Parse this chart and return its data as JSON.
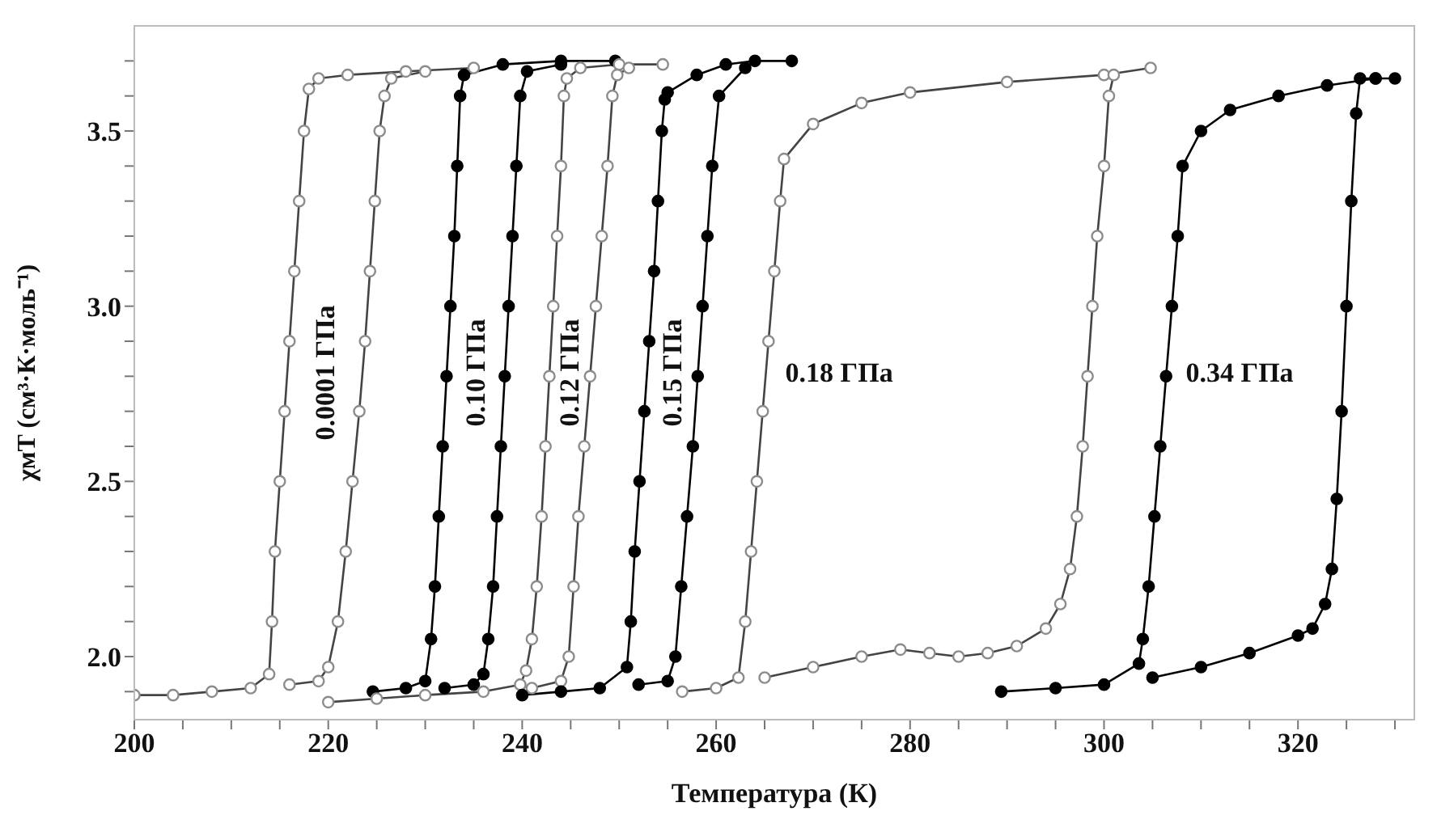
{
  "chart_data": {
    "type": "line",
    "xlabel": "Температура (К)",
    "ylabel": "χмT (см³·К·моль⁻¹)",
    "xlim": [
      200,
      332
    ],
    "ylim": [
      1.82,
      3.8
    ],
    "xticks": [
      200,
      {
        "value": 205,
        "label": null
      },
      {
        "value": 210,
        "label": null
      },
      {
        "value": 215,
        "label": null
      },
      220,
      {
        "value": 225,
        "label": null
      },
      {
        "value": 230,
        "label": null
      },
      {
        "value": 235,
        "label": null
      },
      240,
      {
        "value": 245,
        "label": null
      },
      {
        "value": 250,
        "label": null
      },
      {
        "value": 255,
        "label": null
      },
      260,
      {
        "value": 265,
        "label": null
      },
      {
        "value": 270,
        "label": null
      },
      {
        "value": 275,
        "label": null
      },
      280,
      {
        "value": 285,
        "label": null
      },
      {
        "value": 290,
        "label": null
      },
      {
        "value": 295,
        "label": null
      },
      300,
      {
        "value": 305,
        "label": null
      },
      {
        "value": 310,
        "label": null
      },
      {
        "value": 315,
        "label": null
      },
      320,
      {
        "value": 325,
        "label": null
      },
      {
        "value": 330,
        "label": null
      }
    ],
    "yticks": [
      {
        "value": 1.9,
        "label": null
      },
      {
        "value": 2.0,
        "label": "2.0"
      },
      {
        "value": 2.1,
        "label": null
      },
      {
        "value": 2.2,
        "label": null
      },
      {
        "value": 2.3,
        "label": null
      },
      {
        "value": 2.4,
        "label": null
      },
      2.5,
      {
        "value": 2.6,
        "label": null
      },
      {
        "value": 2.7,
        "label": null
      },
      {
        "value": 2.8,
        "label": null
      },
      {
        "value": 2.9,
        "label": null
      },
      {
        "value": 3.0,
        "label": "3.0"
      },
      {
        "value": 3.1,
        "label": null
      },
      {
        "value": 3.2,
        "label": null
      },
      {
        "value": 3.3,
        "label": null
      },
      {
        "value": 3.4,
        "label": null
      },
      3.5,
      {
        "value": 3.6,
        "label": null
      },
      {
        "value": 3.7,
        "label": null
      }
    ],
    "marker": "circle",
    "line_style": "solid",
    "series": [
      {
        "name": "0.0001 ГПа",
        "color": "#8c8c8c",
        "x": [
          200,
          204,
          208,
          212,
          213.9,
          214.2,
          214.5,
          215,
          215.5,
          216,
          216.5,
          217,
          217.5,
          218,
          219,
          222,
          228,
          235
        ],
        "values": [
          1.89,
          1.89,
          1.9,
          1.91,
          1.95,
          2.1,
          2.3,
          2.5,
          2.7,
          2.9,
          3.1,
          3.3,
          3.5,
          3.62,
          3.65,
          3.66,
          3.67,
          3.68
        ]
      },
      {
        "color": "#8c8c8c",
        "x": [
          216,
          219,
          220,
          221,
          221.8,
          222.5,
          223.2,
          223.8,
          224.3,
          224.8,
          225.3,
          225.8,
          226.5,
          230
        ],
        "values": [
          1.92,
          1.93,
          1.97,
          2.1,
          2.3,
          2.5,
          2.7,
          2.9,
          3.1,
          3.3,
          3.5,
          3.6,
          3.65,
          3.67
        ]
      },
      {
        "name": "0.10 ГПа",
        "color": "#000000",
        "x": [
          224.6,
          228,
          230,
          230.6,
          231,
          231.4,
          231.8,
          232.2,
          232.6,
          233,
          233.3,
          233.6,
          234,
          238,
          244,
          249.6
        ],
        "values": [
          1.9,
          1.91,
          1.93,
          2.05,
          2.2,
          2.4,
          2.6,
          2.8,
          3.0,
          3.2,
          3.4,
          3.6,
          3.66,
          3.69,
          3.7,
          3.7
        ]
      },
      {
        "color": "#000000",
        "x": [
          232,
          235,
          236,
          236.5,
          237,
          237.4,
          237.8,
          238.2,
          238.6,
          239,
          239.4,
          239.8,
          240.5,
          244
        ],
        "values": [
          1.91,
          1.92,
          1.95,
          2.05,
          2.2,
          2.4,
          2.6,
          2.8,
          3.0,
          3.2,
          3.4,
          3.6,
          3.67,
          3.69
        ]
      },
      {
        "name": "0.12 ГПа",
        "color": "#8c8c8c",
        "x": [
          220,
          225,
          230,
          236,
          239.8,
          240.4,
          241,
          241.5,
          242,
          242.4,
          242.8,
          243.2,
          243.6,
          244,
          244.3,
          244.6,
          246,
          250,
          254.5
        ],
        "values": [
          1.87,
          1.88,
          1.89,
          1.9,
          1.92,
          1.96,
          2.05,
          2.2,
          2.4,
          2.6,
          2.8,
          3.0,
          3.2,
          3.4,
          3.6,
          3.65,
          3.68,
          3.69,
          3.69
        ]
      },
      {
        "color": "#8c8c8c",
        "x": [
          241,
          244,
          244.8,
          245.3,
          245.8,
          246.4,
          247,
          247.6,
          248.2,
          248.8,
          249.3,
          249.8,
          251
        ],
        "values": [
          1.91,
          1.93,
          2.0,
          2.2,
          2.4,
          2.6,
          2.8,
          3.0,
          3.2,
          3.4,
          3.6,
          3.66,
          3.68
        ]
      },
      {
        "name": "0.15 ГПа",
        "color": "#000000",
        "x": [
          240,
          244,
          248,
          250.8,
          251.2,
          251.6,
          252.1,
          252.6,
          253.1,
          253.6,
          254,
          254.4,
          254.7,
          255,
          258,
          261,
          264,
          267.8
        ],
        "values": [
          1.89,
          1.9,
          1.91,
          1.97,
          2.1,
          2.3,
          2.5,
          2.7,
          2.9,
          3.1,
          3.3,
          3.5,
          3.59,
          3.61,
          3.66,
          3.69,
          3.7,
          3.7
        ]
      },
      {
        "color": "#000000",
        "x": [
          252,
          255,
          255.8,
          256.4,
          257,
          257.6,
          258.1,
          258.6,
          259.1,
          259.6,
          260.3,
          263
        ],
        "values": [
          1.92,
          1.93,
          2.0,
          2.2,
          2.4,
          2.6,
          2.8,
          3.0,
          3.2,
          3.4,
          3.6,
          3.68
        ]
      },
      {
        "name": "0.18 ГПа",
        "color": "#8c8c8c",
        "x": [
          256.5,
          260,
          262.3,
          263,
          263.6,
          264.2,
          264.8,
          265.4,
          266,
          266.6,
          267,
          270,
          275,
          280,
          290,
          300,
          304.8
        ],
        "values": [
          1.9,
          1.91,
          1.94,
          2.1,
          2.3,
          2.5,
          2.7,
          2.9,
          3.1,
          3.3,
          3.42,
          3.52,
          3.58,
          3.61,
          3.64,
          3.66,
          3.68
        ]
      },
      {
        "color": "#8c8c8c",
        "x": [
          265,
          270,
          275,
          279,
          282,
          285,
          288,
          291,
          294,
          295.5,
          296.5,
          297.2,
          297.8,
          298.3,
          298.8,
          299.3,
          300,
          300.5,
          301
        ],
        "values": [
          1.94,
          1.97,
          2.0,
          2.02,
          2.01,
          2.0,
          2.01,
          2.03,
          2.08,
          2.15,
          2.25,
          2.4,
          2.6,
          2.8,
          3.0,
          3.2,
          3.4,
          3.6,
          3.66
        ]
      },
      {
        "name": "0.34 ГПа",
        "color": "#000000",
        "x": [
          289.4,
          295,
          300,
          303.6,
          304,
          304.6,
          305.2,
          305.8,
          306.4,
          307,
          307.6,
          308.1,
          310,
          313,
          318,
          323,
          328,
          330
        ],
        "values": [
          1.9,
          1.91,
          1.92,
          1.98,
          2.05,
          2.2,
          2.4,
          2.6,
          2.8,
          3.0,
          3.2,
          3.4,
          3.5,
          3.56,
          3.6,
          3.63,
          3.65,
          3.65
        ]
      },
      {
        "color": "#000000",
        "x": [
          305,
          310,
          315,
          320,
          321.5,
          322.8,
          323.5,
          324,
          324.5,
          325,
          325.5,
          326,
          326.4,
          328
        ],
        "values": [
          1.94,
          1.97,
          2.01,
          2.06,
          2.08,
          2.15,
          2.25,
          2.45,
          2.7,
          3.0,
          3.3,
          3.55,
          3.65,
          3.65
        ]
      }
    ]
  }
}
